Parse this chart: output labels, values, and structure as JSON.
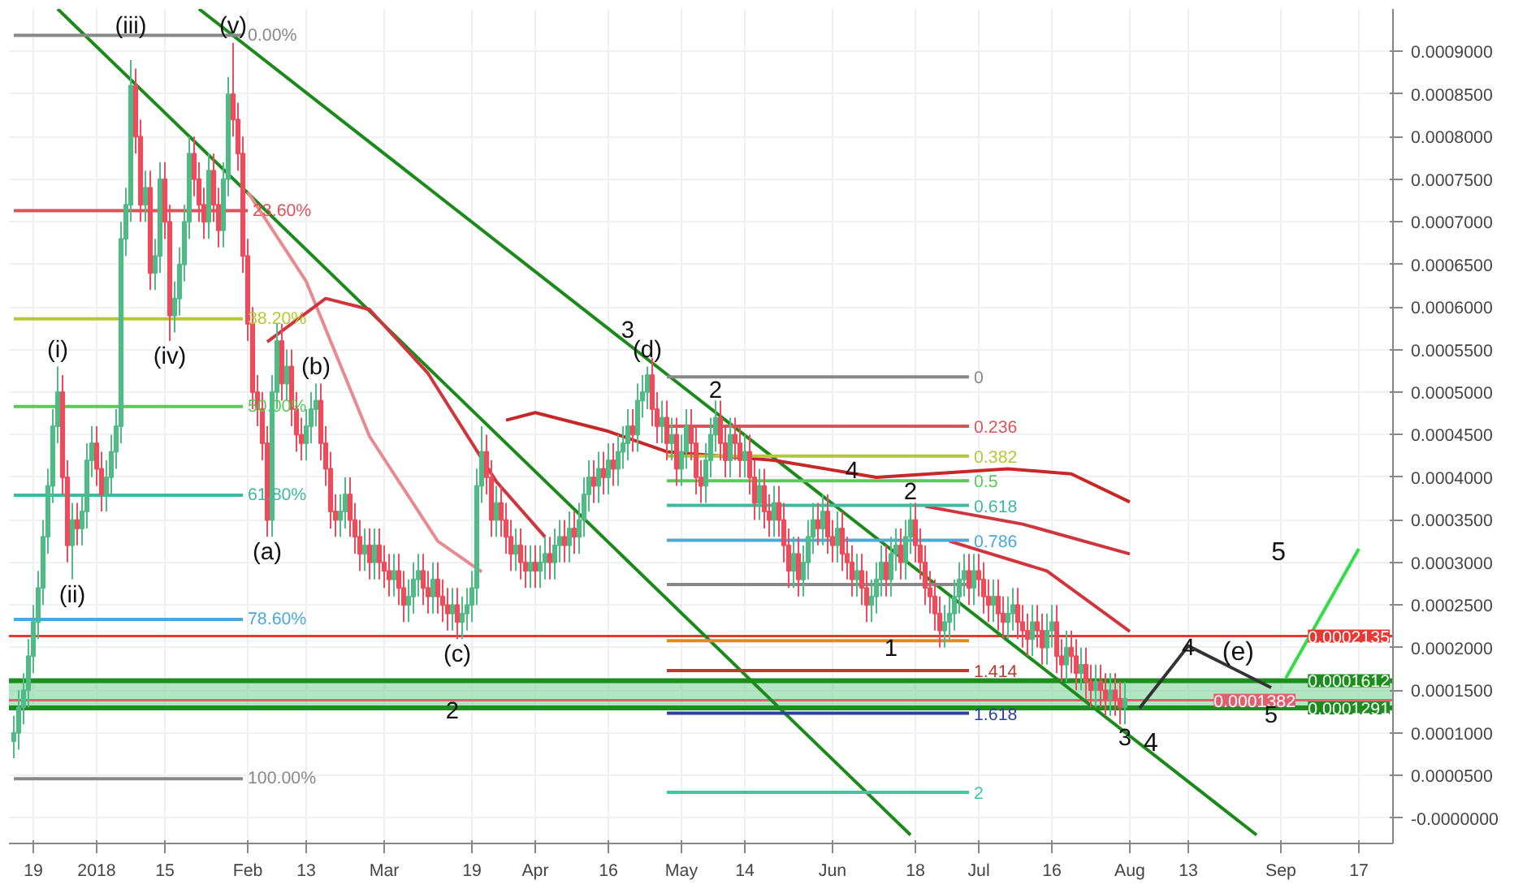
{
  "chart_data": {
    "type": "candlestick",
    "x": [
      "2017-12-15",
      "2017-12-16",
      "2017-12-17",
      "2017-12-18",
      "2017-12-19",
      "2017-12-20",
      "2017-12-21",
      "2017-12-22",
      "2017-12-23",
      "2017-12-24",
      "2017-12-25",
      "2017-12-26",
      "2017-12-27",
      "2017-12-28",
      "2017-12-29",
      "2017-12-30",
      "2017-12-31",
      "2018-01-01",
      "2018-01-02",
      "2018-01-03",
      "2018-01-04",
      "2018-01-05",
      "2018-01-06",
      "2018-01-07",
      "2018-01-08",
      "2018-01-09",
      "2018-01-10",
      "2018-01-11",
      "2018-01-12",
      "2018-01-13",
      "2018-01-14",
      "2018-01-15",
      "2018-01-16",
      "2018-01-17",
      "2018-01-18",
      "2018-01-19",
      "2018-01-20",
      "2018-01-21",
      "2018-01-22",
      "2018-01-23",
      "2018-01-24",
      "2018-01-25",
      "2018-01-26",
      "2018-01-27",
      "2018-01-28",
      "2018-01-29",
      "2018-01-30",
      "2018-01-31",
      "2018-02-01",
      "2018-02-02",
      "2018-02-03",
      "2018-02-04",
      "2018-02-05",
      "2018-02-06",
      "2018-02-07",
      "2018-02-08",
      "2018-02-09",
      "2018-02-10",
      "2018-02-11",
      "2018-02-12",
      "2018-02-13",
      "2018-02-14",
      "2018-02-15",
      "2018-02-16",
      "2018-02-17",
      "2018-02-18",
      "2018-02-19",
      "2018-02-20",
      "2018-02-21",
      "2018-02-22",
      "2018-02-23",
      "2018-02-24",
      "2018-02-25",
      "2018-02-26",
      "2018-02-27",
      "2018-02-28",
      "2018-03-01",
      "2018-03-02",
      "2018-03-03",
      "2018-03-04",
      "2018-03-05",
      "2018-03-06",
      "2018-03-07",
      "2018-03-08",
      "2018-03-09",
      "2018-03-10",
      "2018-03-11",
      "2018-03-12",
      "2018-03-13",
      "2018-03-14",
      "2018-03-15",
      "2018-03-16",
      "2018-03-17",
      "2018-03-18",
      "2018-03-19",
      "2018-03-20",
      "2018-03-21",
      "2018-03-22",
      "2018-03-23",
      "2018-03-24",
      "2018-03-25",
      "2018-03-26",
      "2018-03-27",
      "2018-03-28",
      "2018-03-29",
      "2018-03-30",
      "2018-03-31",
      "2018-04-01",
      "2018-04-02",
      "2018-04-03",
      "2018-04-04",
      "2018-04-05",
      "2018-04-06",
      "2018-04-07",
      "2018-04-08",
      "2018-04-09",
      "2018-04-10",
      "2018-04-11",
      "2018-04-12",
      "2018-04-13",
      "2018-04-14",
      "2018-04-15",
      "2018-04-16",
      "2018-04-17",
      "2018-04-18",
      "2018-04-19",
      "2018-04-20",
      "2018-04-21",
      "2018-04-22",
      "2018-04-23",
      "2018-04-24",
      "2018-04-25",
      "2018-04-26",
      "2018-04-27",
      "2018-04-28",
      "2018-04-29",
      "2018-04-30",
      "2018-05-01",
      "2018-05-02",
      "2018-05-03",
      "2018-05-04",
      "2018-05-05",
      "2018-05-06",
      "2018-05-07",
      "2018-05-08",
      "2018-05-09",
      "2018-05-10",
      "2018-05-11",
      "2018-05-12",
      "2018-05-13",
      "2018-05-14",
      "2018-05-15",
      "2018-05-16",
      "2018-05-17",
      "2018-05-18",
      "2018-05-19",
      "2018-05-20",
      "2018-05-21",
      "2018-05-22",
      "2018-05-23",
      "2018-05-24",
      "2018-05-25",
      "2018-05-26",
      "2018-05-27",
      "2018-05-28",
      "2018-05-29",
      "2018-05-30",
      "2018-05-31",
      "2018-06-01",
      "2018-06-02",
      "2018-06-03",
      "2018-06-04",
      "2018-06-05",
      "2018-06-06",
      "2018-06-07",
      "2018-06-08",
      "2018-06-09",
      "2018-06-10",
      "2018-06-11",
      "2018-06-12",
      "2018-06-13",
      "2018-06-14",
      "2018-06-15",
      "2018-06-16",
      "2018-06-17",
      "2018-06-18",
      "2018-06-19",
      "2018-06-20",
      "2018-06-21",
      "2018-06-22",
      "2018-06-23",
      "2018-06-24",
      "2018-06-25",
      "2018-06-26",
      "2018-06-27",
      "2018-06-28",
      "2018-06-29",
      "2018-06-30",
      "2018-07-01",
      "2018-07-02",
      "2018-07-03",
      "2018-07-04",
      "2018-07-05",
      "2018-07-06",
      "2018-07-07",
      "2018-07-08",
      "2018-07-09",
      "2018-07-10",
      "2018-07-11",
      "2018-07-12",
      "2018-07-13",
      "2018-07-14",
      "2018-07-15",
      "2018-07-16",
      "2018-07-17",
      "2018-07-18",
      "2018-07-19",
      "2018-07-20",
      "2018-07-21",
      "2018-07-22",
      "2018-07-23",
      "2018-07-24",
      "2018-07-25",
      "2018-07-26",
      "2018-07-27",
      "2018-07-28",
      "2018-07-29",
      "2018-07-30",
      "2018-07-31"
    ],
    "ohlc": [
      [
        9e-05,
        0.00012,
        7e-05,
        0.0001
      ],
      [
        0.0001,
        0.00015,
        8e-05,
        0.00013
      ],
      [
        0.00013,
        0.00017,
        0.00011,
        0.00015
      ],
      [
        0.00015,
        0.00021,
        0.00013,
        0.00019
      ],
      [
        0.00019,
        0.00025,
        0.00017,
        0.00023
      ],
      [
        0.00023,
        0.00029,
        0.00021,
        0.00027
      ],
      [
        0.00027,
        0.00035,
        0.00025,
        0.00033
      ],
      [
        0.00033,
        0.00041,
        0.00031,
        0.00039
      ],
      [
        0.00039,
        0.00048,
        0.00037,
        0.00046
      ],
      [
        0.00046,
        0.00053,
        0.00044,
        0.0005
      ],
      [
        0.0005,
        0.00052,
        0.00038,
        0.0004
      ],
      [
        0.0004,
        0.00042,
        0.0003,
        0.00032
      ],
      [
        0.00032,
        0.00037,
        0.00028,
        0.00035
      ],
      [
        0.00035,
        0.00037,
        0.00032,
        0.00034
      ],
      [
        0.00034,
        0.00038,
        0.00032,
        0.00036
      ],
      [
        0.00036,
        0.00044,
        0.00034,
        0.00042
      ],
      [
        0.00042,
        0.00046,
        0.0004,
        0.00044
      ],
      [
        0.00044,
        0.00046,
        0.00039,
        0.00041
      ],
      [
        0.00041,
        0.00043,
        0.00036,
        0.00038
      ],
      [
        0.00038,
        0.00042,
        0.00036,
        0.0004
      ],
      [
        0.0004,
        0.00045,
        0.00038,
        0.00043
      ],
      [
        0.00043,
        0.00048,
        0.00041,
        0.00046
      ],
      [
        0.00046,
        0.0007,
        0.00044,
        0.00068
      ],
      [
        0.00068,
        0.00074,
        0.00066,
        0.00072
      ],
      [
        0.00072,
        0.00089,
        0.0007,
        0.00086
      ],
      [
        0.00086,
        0.00088,
        0.00078,
        0.0008
      ],
      [
        0.0008,
        0.00082,
        0.0007,
        0.00072
      ],
      [
        0.00072,
        0.00076,
        0.0007,
        0.00074
      ],
      [
        0.00074,
        0.00076,
        0.00062,
        0.00064
      ],
      [
        0.00064,
        0.00068,
        0.00062,
        0.00066
      ],
      [
        0.00066,
        0.00077,
        0.00064,
        0.00075
      ],
      [
        0.00075,
        0.00077,
        0.00068,
        0.0007
      ],
      [
        0.0007,
        0.00072,
        0.00056,
        0.00059
      ],
      [
        0.00059,
        0.00063,
        0.00057,
        0.00061
      ],
      [
        0.00061,
        0.00067,
        0.00059,
        0.00065
      ],
      [
        0.00065,
        0.00072,
        0.00063,
        0.0007
      ],
      [
        0.0007,
        0.0008,
        0.00068,
        0.00078
      ],
      [
        0.00078,
        0.0008,
        0.00073,
        0.00075
      ],
      [
        0.00075,
        0.00077,
        0.0007,
        0.00072
      ],
      [
        0.00072,
        0.00074,
        0.00068,
        0.0007
      ],
      [
        0.0007,
        0.00078,
        0.00068,
        0.00076
      ],
      [
        0.00076,
        0.00078,
        0.0007,
        0.00072
      ],
      [
        0.00072,
        0.00074,
        0.00067,
        0.00069
      ],
      [
        0.00069,
        0.00077,
        0.00067,
        0.00075
      ],
      [
        0.00075,
        0.00087,
        0.00073,
        0.00085
      ],
      [
        0.00085,
        0.00091,
        0.0008,
        0.00082
      ],
      [
        0.00082,
        0.00084,
        0.00076,
        0.00078
      ],
      [
        0.00078,
        0.0008,
        0.00064,
        0.00066
      ],
      [
        0.00066,
        0.00068,
        0.00056,
        0.00058
      ],
      [
        0.00058,
        0.0006,
        0.00048,
        0.0005
      ],
      [
        0.0005,
        0.00052,
        0.00046,
        0.00048
      ],
      [
        0.00048,
        0.0005,
        0.00042,
        0.00044
      ],
      [
        0.00044,
        0.00046,
        0.00033,
        0.00035
      ],
      [
        0.00035,
        0.00052,
        0.00033,
        0.0005
      ],
      [
        0.0005,
        0.00058,
        0.00048,
        0.00056
      ],
      [
        0.00056,
        0.00058,
        0.00049,
        0.00051
      ],
      [
        0.00051,
        0.00055,
        0.00049,
        0.00053
      ],
      [
        0.00053,
        0.00055,
        0.00046,
        0.00048
      ],
      [
        0.00048,
        0.0005,
        0.00043,
        0.00045
      ],
      [
        0.00045,
        0.00047,
        0.00042,
        0.00044
      ],
      [
        0.00044,
        0.00048,
        0.00042,
        0.00046
      ],
      [
        0.00046,
        0.0005,
        0.00044,
        0.00048
      ],
      [
        0.00048,
        0.00051,
        0.00046,
        0.00049
      ],
      [
        0.00049,
        0.00051,
        0.00042,
        0.00044
      ],
      [
        0.00044,
        0.00046,
        0.00039,
        0.00041
      ],
      [
        0.00041,
        0.00043,
        0.00034,
        0.00036
      ],
      [
        0.00036,
        0.00038,
        0.00033,
        0.00035
      ],
      [
        0.00035,
        0.00038,
        0.00033,
        0.00036
      ],
      [
        0.00036,
        0.0004,
        0.00034,
        0.00038
      ],
      [
        0.00038,
        0.0004,
        0.00033,
        0.00035
      ],
      [
        0.00035,
        0.00037,
        0.00031,
        0.00033
      ],
      [
        0.00033,
        0.00035,
        0.00029,
        0.00031
      ],
      [
        0.00031,
        0.00034,
        0.00029,
        0.00032
      ],
      [
        0.00032,
        0.00034,
        0.00028,
        0.0003
      ],
      [
        0.0003,
        0.00034,
        0.00028,
        0.00032
      ],
      [
        0.00032,
        0.00034,
        0.00028,
        0.0003
      ],
      [
        0.0003,
        0.00032,
        0.00027,
        0.00029
      ],
      [
        0.00029,
        0.00031,
        0.00026,
        0.00028
      ],
      [
        0.00028,
        0.00031,
        0.00026,
        0.00029
      ],
      [
        0.00029,
        0.00031,
        0.00025,
        0.00027
      ],
      [
        0.00027,
        0.00029,
        0.00023,
        0.00025
      ],
      [
        0.00025,
        0.00028,
        0.00023,
        0.00026
      ],
      [
        0.00026,
        0.0003,
        0.00024,
        0.00028
      ],
      [
        0.00028,
        0.00031,
        0.00026,
        0.00029
      ],
      [
        0.00029,
        0.00031,
        0.00025,
        0.00027
      ],
      [
        0.00027,
        0.00029,
        0.00024,
        0.00026
      ],
      [
        0.00026,
        0.0003,
        0.00024,
        0.00028
      ],
      [
        0.00028,
        0.0003,
        0.00024,
        0.00026
      ],
      [
        0.00026,
        0.00028,
        0.00023,
        0.00025
      ],
      [
        0.00025,
        0.00027,
        0.00022,
        0.00024
      ],
      [
        0.00024,
        0.00027,
        0.00022,
        0.00025
      ],
      [
        0.00025,
        0.00027,
        0.00021,
        0.00023
      ],
      [
        0.00023,
        0.00026,
        0.00021,
        0.00024
      ],
      [
        0.00024,
        0.00027,
        0.00022,
        0.00025
      ],
      [
        0.00025,
        0.00029,
        0.00023,
        0.00027
      ],
      [
        0.00027,
        0.00041,
        0.00025,
        0.00039
      ],
      [
        0.00039,
        0.00046,
        0.00037,
        0.00043
      ],
      [
        0.00043,
        0.00045,
        0.00038,
        0.0004
      ],
      [
        0.0004,
        0.00042,
        0.00033,
        0.00035
      ],
      [
        0.00035,
        0.00039,
        0.00033,
        0.00037
      ],
      [
        0.00037,
        0.00039,
        0.00033,
        0.00035
      ],
      [
        0.00035,
        0.00037,
        0.00031,
        0.00033
      ],
      [
        0.00033,
        0.00035,
        0.00029,
        0.00031
      ],
      [
        0.00031,
        0.00034,
        0.00029,
        0.00032
      ],
      [
        0.00032,
        0.00034,
        0.00028,
        0.0003
      ],
      [
        0.0003,
        0.00032,
        0.00027,
        0.00029
      ],
      [
        0.00029,
        0.00032,
        0.00027,
        0.0003
      ],
      [
        0.0003,
        0.00032,
        0.00027,
        0.00029
      ],
      [
        0.00029,
        0.00032,
        0.00027,
        0.0003
      ],
      [
        0.0003,
        0.00033,
        0.00028,
        0.00031
      ],
      [
        0.00031,
        0.00033,
        0.00028,
        0.0003
      ],
      [
        0.0003,
        0.00034,
        0.00028,
        0.00032
      ],
      [
        0.00032,
        0.00035,
        0.0003,
        0.00033
      ],
      [
        0.00033,
        0.00035,
        0.0003,
        0.00032
      ],
      [
        0.00032,
        0.00036,
        0.0003,
        0.00034
      ],
      [
        0.00034,
        0.00036,
        0.00031,
        0.00033
      ],
      [
        0.00033,
        0.00037,
        0.00031,
        0.00035
      ],
      [
        0.00035,
        0.0004,
        0.00033,
        0.00038
      ],
      [
        0.00038,
        0.00042,
        0.00036,
        0.0004
      ],
      [
        0.0004,
        0.00042,
        0.00037,
        0.00039
      ],
      [
        0.00039,
        0.00043,
        0.00037,
        0.00041
      ],
      [
        0.00041,
        0.00043,
        0.00038,
        0.0004
      ],
      [
        0.0004,
        0.00044,
        0.00038,
        0.00042
      ],
      [
        0.00042,
        0.00044,
        0.00039,
        0.00041
      ],
      [
        0.00041,
        0.00045,
        0.00039,
        0.00043
      ],
      [
        0.00043,
        0.00046,
        0.00041,
        0.00044
      ],
      [
        0.00044,
        0.00048,
        0.00042,
        0.00046
      ],
      [
        0.00046,
        0.00048,
        0.00043,
        0.00045
      ],
      [
        0.00045,
        0.00051,
        0.00043,
        0.00049
      ],
      [
        0.00049,
        0.00052,
        0.00047,
        0.0005
      ],
      [
        0.0005,
        0.00053,
        0.00048,
        0.00052
      ],
      [
        0.00052,
        0.00054,
        0.00046,
        0.00048
      ],
      [
        0.00048,
        0.0005,
        0.00044,
        0.00046
      ],
      [
        0.00046,
        0.00049,
        0.00044,
        0.00047
      ],
      [
        0.00047,
        0.00049,
        0.00042,
        0.00044
      ],
      [
        0.00044,
        0.00047,
        0.00042,
        0.00045
      ],
      [
        0.00045,
        0.00047,
        0.00039,
        0.00041
      ],
      [
        0.00041,
        0.00045,
        0.00039,
        0.00043
      ],
      [
        0.00043,
        0.00048,
        0.00041,
        0.00046
      ],
      [
        0.00046,
        0.00048,
        0.00042,
        0.00044
      ],
      [
        0.00044,
        0.00046,
        0.00038,
        0.0004
      ],
      [
        0.0004,
        0.00042,
        0.00037,
        0.00039
      ],
      [
        0.00039,
        0.00044,
        0.00037,
        0.00042
      ],
      [
        0.00042,
        0.00047,
        0.0004,
        0.00045
      ],
      [
        0.00045,
        0.00049,
        0.00043,
        0.00047
      ],
      [
        0.00047,
        0.00049,
        0.00042,
        0.00044
      ],
      [
        0.00044,
        0.00046,
        0.0004,
        0.00042
      ],
      [
        0.00042,
        0.00047,
        0.0004,
        0.00045
      ],
      [
        0.00045,
        0.00047,
        0.00042,
        0.00044
      ],
      [
        0.00044,
        0.00046,
        0.0004,
        0.00042
      ],
      [
        0.00042,
        0.00045,
        0.0004,
        0.00043
      ],
      [
        0.00043,
        0.00045,
        0.00038,
        0.0004
      ],
      [
        0.0004,
        0.00042,
        0.00035,
        0.00037
      ],
      [
        0.00037,
        0.00041,
        0.00035,
        0.00039
      ],
      [
        0.00039,
        0.00041,
        0.00034,
        0.00036
      ],
      [
        0.00036,
        0.00038,
        0.00033,
        0.00035
      ],
      [
        0.00035,
        0.00039,
        0.00033,
        0.00037
      ],
      [
        0.00037,
        0.00039,
        0.00033,
        0.00035
      ],
      [
        0.00035,
        0.00037,
        0.0003,
        0.00032
      ],
      [
        0.00032,
        0.00034,
        0.00027,
        0.00029
      ],
      [
        0.00029,
        0.00033,
        0.00027,
        0.00031
      ],
      [
        0.00031,
        0.00033,
        0.00026,
        0.00028
      ],
      [
        0.00028,
        0.00032,
        0.00026,
        0.0003
      ],
      [
        0.0003,
        0.00035,
        0.00028,
        0.00033
      ],
      [
        0.00033,
        0.00037,
        0.00031,
        0.00035
      ],
      [
        0.00035,
        0.00037,
        0.00032,
        0.00034
      ],
      [
        0.00034,
        0.00038,
        0.00032,
        0.00036
      ],
      [
        0.00036,
        0.00038,
        0.00031,
        0.00033
      ],
      [
        0.00033,
        0.00035,
        0.0003,
        0.00032
      ],
      [
        0.00032,
        0.00036,
        0.0003,
        0.00034
      ],
      [
        0.00034,
        0.00036,
        0.00029,
        0.00031
      ],
      [
        0.00031,
        0.00033,
        0.00028,
        0.0003
      ],
      [
        0.0003,
        0.00032,
        0.00026,
        0.00028
      ],
      [
        0.00028,
        0.00031,
        0.00026,
        0.00029
      ],
      [
        0.00029,
        0.00031,
        0.00025,
        0.00027
      ],
      [
        0.00027,
        0.00029,
        0.00023,
        0.00025
      ],
      [
        0.00025,
        0.00028,
        0.00023,
        0.00026
      ],
      [
        0.00026,
        0.0003,
        0.00024,
        0.00028
      ],
      [
        0.00028,
        0.00032,
        0.00026,
        0.0003
      ],
      [
        0.0003,
        0.00032,
        0.00026,
        0.00028
      ],
      [
        0.00028,
        0.00033,
        0.00026,
        0.00031
      ],
      [
        0.00031,
        0.00034,
        0.00029,
        0.00032
      ],
      [
        0.00032,
        0.00034,
        0.00028,
        0.0003
      ],
      [
        0.0003,
        0.00035,
        0.00028,
        0.00033
      ],
      [
        0.00033,
        0.00037,
        0.00031,
        0.00035
      ],
      [
        0.00035,
        0.00037,
        0.0003,
        0.00032
      ],
      [
        0.00032,
        0.00034,
        0.00028,
        0.0003
      ],
      [
        0.0003,
        0.00032,
        0.00025,
        0.00027
      ],
      [
        0.00027,
        0.00029,
        0.00024,
        0.00026
      ],
      [
        0.00026,
        0.00028,
        0.00022,
        0.00024
      ],
      [
        0.00024,
        0.00026,
        0.0002,
        0.00022
      ],
      [
        0.00022,
        0.00025,
        0.0002,
        0.00023
      ],
      [
        0.00023,
        0.00026,
        0.00021,
        0.00024
      ],
      [
        0.00024,
        0.00028,
        0.00022,
        0.00026
      ],
      [
        0.00026,
        0.0003,
        0.00024,
        0.00028
      ],
      [
        0.00028,
        0.00031,
        0.00026,
        0.00029
      ],
      [
        0.00029,
        0.00031,
        0.00025,
        0.00027
      ],
      [
        0.00027,
        0.00031,
        0.00025,
        0.00029
      ],
      [
        0.00029,
        0.00031,
        0.00026,
        0.00028
      ],
      [
        0.00028,
        0.0003,
        0.00024,
        0.00026
      ],
      [
        0.00026,
        0.00028,
        0.00023,
        0.00025
      ],
      [
        0.00025,
        0.00028,
        0.00023,
        0.00026
      ],
      [
        0.00026,
        0.00028,
        0.00022,
        0.00024
      ],
      [
        0.00024,
        0.00026,
        0.00021,
        0.00023
      ],
      [
        0.00023,
        0.00026,
        0.00021,
        0.00024
      ],
      [
        0.00024,
        0.00027,
        0.00022,
        0.00025
      ],
      [
        0.00025,
        0.00027,
        0.00021,
        0.00023
      ],
      [
        0.00023,
        0.00025,
        0.0002,
        0.00022
      ],
      [
        0.00022,
        0.00024,
        0.00019,
        0.00021
      ],
      [
        0.00021,
        0.00025,
        0.00019,
        0.00023
      ],
      [
        0.00023,
        0.00025,
        0.0002,
        0.00022
      ],
      [
        0.00022,
        0.00024,
        0.00018,
        0.0002
      ],
      [
        0.0002,
        0.00024,
        0.00018,
        0.00022
      ],
      [
        0.00022,
        0.00025,
        0.0002,
        0.00023
      ],
      [
        0.00023,
        0.00025,
        0.00017,
        0.00019
      ],
      [
        0.00019,
        0.00021,
        0.00016,
        0.00018
      ],
      [
        0.00018,
        0.00022,
        0.00016,
        0.0002
      ],
      [
        0.0002,
        0.00022,
        0.00017,
        0.00019
      ],
      [
        0.00019,
        0.00021,
        0.00015,
        0.00017
      ],
      [
        0.00017,
        0.0002,
        0.00015,
        0.00018
      ],
      [
        0.00018,
        0.0002,
        0.00014,
        0.00016
      ],
      [
        0.00016,
        0.00018,
        0.00013,
        0.00015
      ],
      [
        0.00015,
        0.00018,
        0.00013,
        0.00016
      ],
      [
        0.00016,
        0.00018,
        0.00013,
        0.00015
      ],
      [
        0.00015,
        0.00017,
        0.00012,
        0.00014
      ],
      [
        0.00014,
        0.00017,
        0.00012,
        0.00015
      ],
      [
        0.00015,
        0.00017,
        0.00012,
        0.00014
      ],
      [
        0.00014,
        0.00016,
        0.00011,
        0.00013
      ],
      [
        0.00013,
        0.00016,
        0.00011,
        0.00014
      ]
    ],
    "colors": [
      "#53b987",
      "#53b987",
      "#53b987",
      "#53b987",
      "#53b987",
      "#53b987",
      "#53b987",
      "#53b987",
      "#53b987",
      "#53b987",
      "#eb4d5c",
      "#eb4d5c",
      "#53b987",
      "#eb4d5c",
      "#53b987",
      "#53b987",
      "#53b987",
      "#eb4d5c",
      "#eb4d5c",
      "#53b987",
      "#53b987",
      "#53b987",
      "#53b987",
      "#53b987",
      "#53b987",
      "#eb4d5c",
      "#eb4d5c",
      "#53b987",
      "#eb4d5c",
      "#53b987",
      "#53b987",
      "#eb4d5c",
      "#eb4d5c",
      "#53b987",
      "#53b987",
      "#53b987",
      "#53b987",
      "#eb4d5c",
      "#eb4d5c",
      "#eb4d5c",
      "#53b987",
      "#eb4d5c",
      "#eb4d5c",
      "#53b987",
      "#53b987",
      "#eb4d5c",
      "#eb4d5c",
      "#eb4d5c",
      "#eb4d5c",
      "#eb4d5c",
      "#eb4d5c",
      "#eb4d5c",
      "#eb4d5c",
      "#53b987",
      "#53b987",
      "#eb4d5c",
      "#53b987",
      "#eb4d5c",
      "#eb4d5c",
      "#eb4d5c",
      "#53b987",
      "#53b987",
      "#53b987",
      "#eb4d5c",
      "#eb4d5c",
      "#eb4d5c",
      "#eb4d5c",
      "#53b987",
      "#53b987",
      "#eb4d5c",
      "#eb4d5c",
      "#eb4d5c",
      "#53b987",
      "#eb4d5c",
      "#53b987",
      "#eb4d5c",
      "#eb4d5c",
      "#eb4d5c",
      "#53b987",
      "#eb4d5c",
      "#eb4d5c",
      "#53b987",
      "#53b987",
      "#53b987",
      "#eb4d5c",
      "#eb4d5c",
      "#53b987",
      "#eb4d5c",
      "#eb4d5c",
      "#eb4d5c",
      "#53b987",
      "#eb4d5c",
      "#53b987",
      "#53b987",
      "#53b987",
      "#53b987",
      "#53b987",
      "#eb4d5c",
      "#eb4d5c",
      "#53b987",
      "#eb4d5c",
      "#eb4d5c",
      "#eb4d5c",
      "#53b987",
      "#eb4d5c",
      "#eb4d5c",
      "#53b987",
      "#eb4d5c",
      "#53b987",
      "#53b987",
      "#eb4d5c",
      "#53b987",
      "#53b987",
      "#eb4d5c",
      "#53b987",
      "#eb4d5c",
      "#53b987",
      "#53b987",
      "#53b987",
      "#eb4d5c",
      "#53b987",
      "#eb4d5c",
      "#53b987",
      "#eb4d5c",
      "#53b987",
      "#53b987",
      "#53b987",
      "#eb4d5c",
      "#53b987",
      "#53b987",
      "#53b987",
      "#eb4d5c",
      "#eb4d5c",
      "#53b987",
      "#eb4d5c",
      "#53b987",
      "#eb4d5c",
      "#53b987",
      "#53b987",
      "#eb4d5c",
      "#eb4d5c",
      "#eb4d5c",
      "#53b987",
      "#53b987",
      "#53b987",
      "#eb4d5c",
      "#eb4d5c",
      "#53b987",
      "#eb4d5c",
      "#eb4d5c",
      "#53b987",
      "#eb4d5c",
      "#eb4d5c",
      "#53b987",
      "#eb4d5c",
      "#eb4d5c",
      "#53b987",
      "#eb4d5c",
      "#eb4d5c",
      "#eb4d5c",
      "#53b987",
      "#eb4d5c",
      "#53b987",
      "#53b987",
      "#53b987",
      "#eb4d5c",
      "#53b987",
      "#eb4d5c",
      "#eb4d5c",
      "#53b987",
      "#eb4d5c",
      "#eb4d5c",
      "#eb4d5c",
      "#53b987",
      "#eb4d5c",
      "#eb4d5c",
      "#53b987",
      "#53b987",
      "#53b987",
      "#eb4d5c",
      "#53b987",
      "#53b987",
      "#eb4d5c",
      "#53b987",
      "#53b987",
      "#eb4d5c",
      "#eb4d5c",
      "#eb4d5c",
      "#eb4d5c",
      "#eb4d5c",
      "#eb4d5c",
      "#53b987",
      "#53b987",
      "#53b987",
      "#53b987",
      "#53b987",
      "#eb4d5c",
      "#53b987",
      "#eb4d5c",
      "#eb4d5c",
      "#eb4d5c",
      "#53b987",
      "#eb4d5c",
      "#eb4d5c",
      "#53b987",
      "#53b987",
      "#eb4d5c",
      "#eb4d5c",
      "#eb4d5c",
      "#53b987",
      "#eb4d5c",
      "#eb4d5c",
      "#53b987",
      "#53b987",
      "#eb4d5c",
      "#eb4d5c",
      "#53b987",
      "#eb4d5c",
      "#eb4d5c",
      "#53b987",
      "#eb4d5c",
      "#eb4d5c",
      "#53b987",
      "#eb4d5c",
      "#eb4d5c",
      "#53b987",
      "#eb4d5c",
      "#eb4d5c",
      "#53b987"
    ],
    "series": [
      {
        "type": "line",
        "color": "#1b8a1b",
        "x": [
          "2017-12-24",
          "2018-06-17"
        ],
        "values": [
          0.00095,
          -2e-05
        ]
      },
      {
        "type": "line",
        "color": "#1b8a1b",
        "x": [
          "2018-01-22",
          "2018-08-27"
        ],
        "values": [
          0.00095,
          -2e-05
        ]
      },
      {
        "type": "line",
        "color": "#e88a90",
        "x": [
          "2018-02-01",
          "2018-02-13",
          "2018-02-26",
          "2018-03-12",
          "2018-03-21"
        ],
        "values": [
          0.000735,
          0.00063,
          0.000448,
          0.000325,
          0.000289
        ]
      },
      {
        "type": "line",
        "color": "#d0343c",
        "x": [
          "2018-02-05",
          "2018-02-17",
          "2018-02-26",
          "2018-03-10",
          "2018-03-24",
          "2018-04-03"
        ],
        "values": [
          0.000559,
          0.00061,
          0.000597,
          0.000522,
          0.000395,
          0.00033
        ]
      },
      {
        "type": "line",
        "color": "#c62828",
        "x": [
          "2018-03-26",
          "2018-04-01",
          "2018-04-16",
          "2018-04-28",
          "2018-05-20",
          "2018-06-10",
          "2018-07-07",
          "2018-07-20",
          "2018-08-01"
        ],
        "values": [
          0.000467,
          0.000476,
          0.000454,
          0.00043,
          0.00042,
          0.0004,
          0.00041,
          0.000404,
          0.000371
        ]
      },
      {
        "type": "line",
        "color": "#d0343c",
        "x": [
          "2018-06-20",
          "2018-07-10",
          "2018-08-01"
        ],
        "values": [
          0.000366,
          0.000345,
          0.00031
        ]
      },
      {
        "type": "line",
        "color": "#d0343c",
        "x": [
          "2018-06-25",
          "2018-07-15",
          "2018-08-01"
        ],
        "values": [
          0.000325,
          0.00029,
          0.000219
        ]
      },
      {
        "type": "line",
        "color": "#333333",
        "x": [
          "2018-08-03",
          "2018-08-13",
          "2018-08-30"
        ],
        "values": [
          0.000129,
          0.000202,
          0.000153
        ]
      },
      {
        "type": "line",
        "color": "#33dd44",
        "x": [
          "2018-09-02",
          "2018-09-17"
        ],
        "values": [
          0.000164,
          0.000316
        ]
      },
      {
        "type": "line",
        "name": "0.00%",
        "color": "#888888",
        "x": [
          "2017-12-15",
          "2018-01-31"
        ],
        "values": [
          0.000919,
          0.000919
        ]
      },
      {
        "type": "line",
        "name": "23.60%",
        "color": "#e0505a",
        "x": [
          "2017-12-15",
          "2018-02-01"
        ],
        "values": [
          0.000713,
          0.000713
        ]
      },
      {
        "type": "line",
        "name": "38.20%",
        "color": "#b5c832",
        "x": [
          "2017-12-15",
          "2018-01-31"
        ],
        "values": [
          0.000586,
          0.000586
        ]
      },
      {
        "type": "line",
        "name": "50.00%",
        "color": "#5cc85c",
        "x": [
          "2017-12-15",
          "2018-01-31"
        ],
        "values": [
          0.000483,
          0.000483
        ]
      },
      {
        "type": "line",
        "name": "61.80%",
        "color": "#3fb8a0",
        "x": [
          "2017-12-15",
          "2018-01-31"
        ],
        "values": [
          0.000379,
          0.000379
        ]
      },
      {
        "type": "line",
        "name": "78.60%",
        "color": "#4aa8dc",
        "x": [
          "2017-12-15",
          "2018-01-31"
        ],
        "values": [
          0.000233,
          0.000233
        ]
      },
      {
        "type": "line",
        "name": "100.00%",
        "color": "#888888",
        "x": [
          "2017-12-15",
          "2018-01-31"
        ],
        "values": [
          4.6e-05,
          4.6e-05
        ]
      },
      {
        "type": "line",
        "name": "0",
        "color": "#888888",
        "x": [
          "2018-04-28",
          "2018-06-29"
        ],
        "values": [
          0.000518,
          0.000518
        ]
      },
      {
        "type": "line",
        "name": "0.236",
        "color": "#e0505a",
        "x": [
          "2018-04-28",
          "2018-06-29"
        ],
        "values": [
          0.00046,
          0.00046
        ]
      },
      {
        "type": "line",
        "name": "0.382",
        "color": "#b5c832",
        "x": [
          "2018-04-28",
          "2018-06-29"
        ],
        "values": [
          0.000425,
          0.000425
        ]
      },
      {
        "type": "line",
        "name": "0.5",
        "color": "#5cc85c",
        "x": [
          "2018-04-28",
          "2018-06-29"
        ],
        "values": [
          0.000396,
          0.000396
        ]
      },
      {
        "type": "line",
        "name": "0.618",
        "color": "#3fb8a0",
        "x": [
          "2018-04-28",
          "2018-06-29"
        ],
        "values": [
          0.000367,
          0.000367
        ]
      },
      {
        "type": "line",
        "name": "0.786",
        "color": "#4aa8dc",
        "x": [
          "2018-04-28",
          "2018-06-29"
        ],
        "values": [
          0.000326,
          0.000326
        ]
      },
      {
        "type": "line",
        "color": "#888888",
        "x": [
          "2018-04-28",
          "2018-06-29"
        ],
        "values": [
          0.000274,
          0.000274
        ]
      },
      {
        "type": "line",
        "color": "#e08a20",
        "x": [
          "2018-04-28",
          "2018-06-29"
        ],
        "values": [
          0.000208,
          0.000208
        ]
      },
      {
        "type": "line",
        "name": "1.414",
        "color": "#c0392b",
        "x": [
          "2018-04-28",
          "2018-06-29"
        ],
        "values": [
          0.000173,
          0.000173
        ]
      },
      {
        "type": "line",
        "name": "1.618",
        "color": "#2c3e9e",
        "x": [
          "2018-04-28",
          "2018-06-29"
        ],
        "values": [
          0.000123,
          0.000123
        ]
      },
      {
        "type": "line",
        "name": "2",
        "color": "#3fc8a0",
        "x": [
          "2018-04-28",
          "2018-06-29"
        ],
        "values": [
          3e-05,
          3e-05
        ]
      }
    ],
    "bands": [
      {
        "axis": "y",
        "from": 0.0001291,
        "to": 0.0001612,
        "color": "#7fd39a"
      }
    ],
    "ref_lines": [
      {
        "axis": "y",
        "value": 0.0002135,
        "label": "0.0002135",
        "color": "#e53935"
      },
      {
        "axis": "y",
        "value": 0.0001612,
        "label": "0.0001612",
        "color": "#1e8c1e"
      },
      {
        "axis": "y",
        "value": 0.0001382,
        "label": "0.0001382",
        "color": "#e06070"
      },
      {
        "axis": "y",
        "value": 0.0001291,
        "label": "0.0001291",
        "color": "#1e8c1e"
      }
    ],
    "annotations": [
      {
        "text": "(i)",
        "x": "2017-12-24",
        "y": 0.00053
      },
      {
        "text": "(ii)",
        "x": "2017-12-27",
        "y": 0.00028
      },
      {
        "text": "(iii)",
        "x": "2018-01-08",
        "y": 0.00091
      },
      {
        "text": "(iv)",
        "x": "2018-01-16",
        "y": 0.00056
      },
      {
        "text": "(v)",
        "x": "2018-01-29",
        "y": 0.00091
      },
      {
        "text": "(a)",
        "x": "2018-02-05",
        "y": 0.00033
      },
      {
        "text": "(b)",
        "x": "2018-02-15",
        "y": 0.00051
      },
      {
        "text": "(c)",
        "x": "2018-03-16",
        "y": 0.00021
      },
      {
        "text": "(d)",
        "x": "2018-04-24",
        "y": 0.00053
      },
      "(e)",
      {
        "text": "3",
        "x": "2018-04-20",
        "y": 0.00056
      },
      {
        "text": "2",
        "x": "2018-03-15",
        "y": 0.000142
      },
      "4",
      "5",
      {
        "text": "1",
        "x": "2018-06-13",
        "y": 0.000215
      },
      {
        "text": "2",
        "x": "2018-06-17",
        "y": 0.00037
      },
      {
        "text": "3",
        "x": "2018-07-31",
        "y": 0.00011
      },
      {
        "text": "4",
        "x": "2018-08-13",
        "y": 0.000202
      },
      {
        "text": "5",
        "x": "2018-08-30",
        "y": 0.000123
      },
      {
        "text": "2",
        "x": "2018-05-08",
        "y": 0.00049
      },
      {
        "text": "4",
        "x": "2018-06-05",
        "y": 0.000395
      }
    ],
    "xlim": [
      "2017-12-14",
      "2018-09-24"
    ],
    "ylim": [
      -3e-05,
      0.00095
    ],
    "xticks": [
      {
        "value": "2017-12-19",
        "label": "19"
      },
      {
        "value": "2018-01-01",
        "label": "2018"
      },
      {
        "value": "2018-01-15",
        "label": "15"
      },
      {
        "value": "2018-02-01",
        "label": "Feb"
      },
      {
        "value": "2018-02-13",
        "label": "13"
      },
      {
        "value": "2018-03-01",
        "label": "Mar"
      },
      {
        "value": "2018-03-19",
        "label": "19"
      },
      {
        "value": "2018-04-01",
        "label": "Apr"
      },
      {
        "value": "2018-04-16",
        "label": "16"
      },
      {
        "value": "2018-05-01",
        "label": "May"
      },
      {
        "value": "2018-05-14",
        "label": "14"
      },
      {
        "value": "2018-06-01",
        "label": "Jun"
      },
      {
        "value": "2018-06-18",
        "label": "18"
      },
      {
        "value": "2018-07-01",
        "label": "Jul"
      },
      {
        "value": "2018-07-16",
        "label": "16"
      },
      {
        "value": "2018-08-01",
        "label": "Aug"
      },
      {
        "value": "2018-08-13",
        "label": "13"
      },
      {
        "value": "2018-09-01",
        "label": "Sep"
      },
      {
        "value": "2018-09-17",
        "label": "17"
      }
    ],
    "yticks": [
      {
        "value": 0,
        "label": "-0.0000000"
      },
      {
        "value": 5e-05,
        "label": "0.0000500"
      },
      {
        "value": 0.0001,
        "label": "0.0001000"
      },
      {
        "value": 0.00015,
        "label": "0.0001500"
      },
      {
        "value": 0.0002,
        "label": "0.0002000"
      },
      {
        "value": 0.00025,
        "label": "0.0002500"
      },
      {
        "value": 0.0003,
        "label": "0.0003000"
      },
      {
        "value": 0.00035,
        "label": "0.0003500"
      },
      {
        "value": 0.0004,
        "label": "0.0004000"
      },
      {
        "value": 0.00045,
        "label": "0.0004500"
      },
      {
        "value": 0.0005,
        "label": "0.0005000"
      },
      {
        "value": 0.00055,
        "label": "0.0005500"
      },
      {
        "value": 0.0006,
        "label": "0.0006000"
      },
      {
        "value": 0.00065,
        "label": "0.0006500"
      },
      {
        "value": 0.0007,
        "label": "0.0007000"
      },
      {
        "value": 0.00075,
        "label": "0.0007500"
      },
      {
        "value": 0.0008,
        "label": "0.0008000"
      },
      {
        "value": 0.00085,
        "label": "0.0008500"
      },
      {
        "value": 0.0009,
        "label": "0.0009000"
      }
    ],
    "grid": true
  }
}
